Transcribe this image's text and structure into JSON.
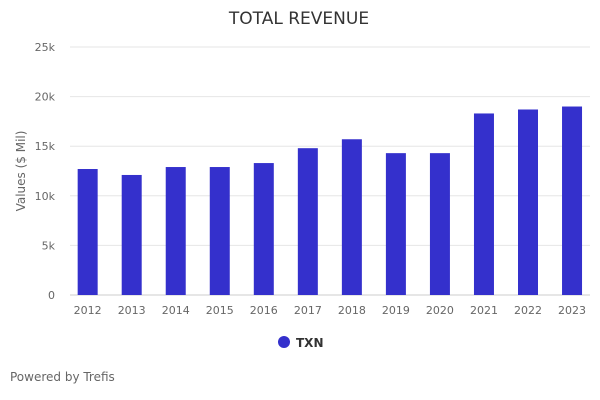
{
  "chart_data": {
    "type": "bar",
    "title": "TOTAL REVENUE",
    "ylabel": "Values ($ Mil)",
    "xlabel": "",
    "categories": [
      "2012",
      "2013",
      "2014",
      "2015",
      "2016",
      "2017",
      "2018",
      "2019",
      "2020",
      "2021",
      "2022",
      "2023"
    ],
    "series": [
      {
        "name": "TXN",
        "values": [
          12700,
          12100,
          12900,
          12900,
          13300,
          14800,
          15700,
          14300,
          14300,
          18300,
          18700,
          19000
        ]
      }
    ],
    "ylim": [
      0,
      25000
    ],
    "yticks": [
      0,
      5000,
      10000,
      15000,
      20000,
      25000
    ],
    "ytick_labels": [
      "0",
      "5k",
      "10k",
      "15k",
      "20k",
      "25k"
    ],
    "grid": true,
    "legend_position": "bottom",
    "bar_color": "#3430cc"
  },
  "footer": {
    "powered_by": "Powered by Trefis"
  }
}
